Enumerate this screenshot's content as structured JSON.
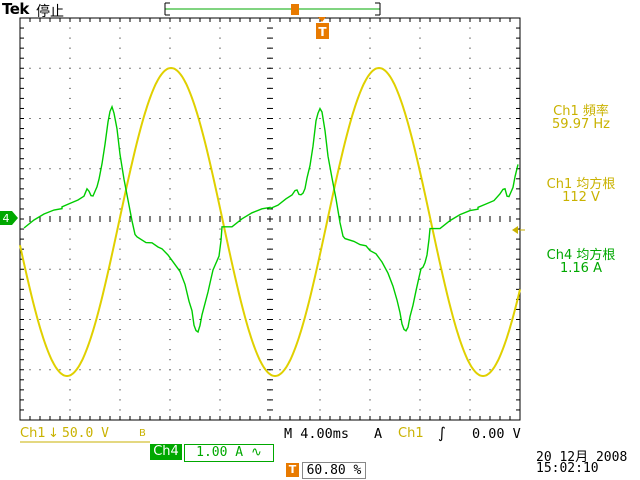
{
  "header": {
    "brand": "Tek",
    "status": "停止",
    "trigger_marker": "T"
  },
  "measurements": [
    {
      "title": "Ch1 頻率",
      "value": "59.97 Hz",
      "color": "#c9b200"
    },
    {
      "title": "Ch1 均方根",
      "value": "112 V",
      "color": "#c9b200"
    },
    {
      "title": "Ch4 均方根",
      "value": "1.16 A",
      "color": "#00a800"
    }
  ],
  "channel_markers": {
    "ch4_marker": "4"
  },
  "bottom": {
    "ch1_label": "Ch1",
    "ch1_scale": "50.0 V",
    "ch1_bw": "B",
    "timebase": "M 4.00ms",
    "trigger_mode": "A",
    "trigger_source": "Ch1",
    "trigger_level": "0.00 V",
    "ch4_label": "Ch4",
    "ch4_scale": "1.00 A",
    "trigger_position": "60.80 %",
    "date": "20 12月 2008",
    "time": "15:02:10"
  },
  "colors": {
    "ch1": "#e0d000",
    "ch4": "#00cc00",
    "trigger": "#e87a00",
    "graticule": "#000000"
  }
}
